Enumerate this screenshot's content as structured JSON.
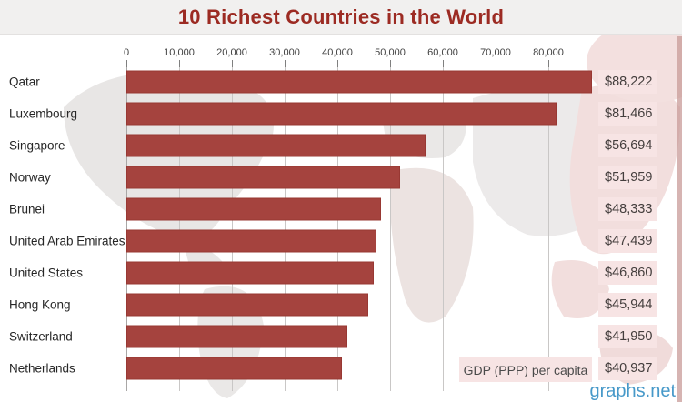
{
  "title": "10 Richest Countries in the World",
  "legend_label": "GDP (PPP) per capita",
  "watermark": "graphs.net",
  "colors": {
    "bar_fill": "#a5433e",
    "bar_border": "#983833",
    "title_text": "#9c2b23",
    "value_box_bg": "#f7e4e4",
    "header_bg": "#f1f0ef",
    "gridline": "#c9c7c6",
    "watermark_blue": "#4799c9"
  },
  "chart_data": {
    "type": "bar",
    "orientation": "horizontal",
    "title": "10 Richest Countries in the World",
    "categories": [
      "Qatar",
      "Luxembourg",
      "Singapore",
      "Norway",
      "Brunei",
      "United Arab Emirates",
      "United States",
      "Hong Kong",
      "Switzerland",
      "Netherlands"
    ],
    "values": [
      88222,
      81466,
      56694,
      51959,
      48333,
      47439,
      46860,
      45944,
      41950,
      40937
    ],
    "value_labels": [
      "$88,222",
      "$81,466",
      "$56,694",
      "$51,959",
      "$48,333",
      "$47,439",
      "$46,860",
      "$45,944",
      "$41,950",
      "$40,937"
    ],
    "axis_ticks": [
      "0",
      "10,000",
      "20,000",
      "30,000",
      "40,000",
      "50,000",
      "60,000",
      "70,000",
      "80,000"
    ],
    "xlabel": "GDP (PPP) per capita",
    "xlim": [
      0,
      90000
    ],
    "grid": true,
    "legend_position": "bottom-right"
  }
}
